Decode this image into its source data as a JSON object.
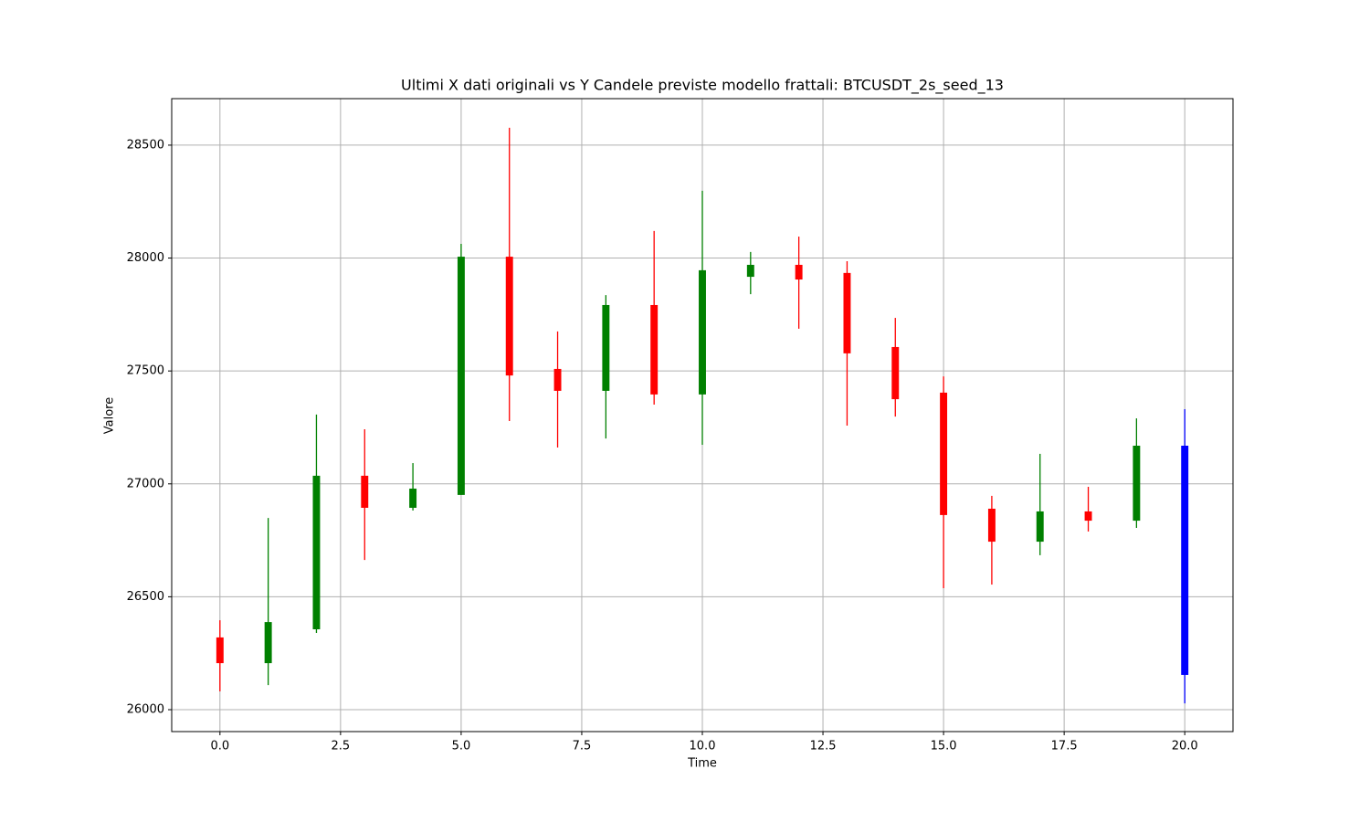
{
  "chart_data": {
    "type": "candlestick",
    "title": "Ultimi X dati originali vs Y Candele previste modello frattali: BTCUSDT_2s_seed_13",
    "xlabel": "Time",
    "ylabel": "Valore",
    "x": [
      0,
      1,
      2,
      3,
      4,
      5,
      6,
      7,
      8,
      9,
      10,
      11,
      12,
      13,
      14,
      15,
      16,
      17,
      18,
      19,
      20
    ],
    "open": [
      26320,
      26206,
      26356,
      27036,
      26894,
      26951,
      28006,
      27509,
      27412,
      27792,
      27396,
      27917,
      27970,
      27934,
      27606,
      27404,
      26890,
      26744,
      26878,
      26837,
      27169
    ],
    "high": [
      26396,
      26849,
      27307,
      27242,
      27092,
      28063,
      28577,
      27675,
      27836,
      28120,
      28298,
      28027,
      28095,
      27986,
      27735,
      27476,
      26947,
      27133,
      26987,
      27290,
      27331
    ],
    "low": [
      26081,
      26109,
      26340,
      26663,
      26882,
      26951,
      27278,
      27161,
      27201,
      27351,
      27173,
      27840,
      27687,
      27258,
      27298,
      26538,
      26554,
      26684,
      26789,
      26805,
      26028
    ],
    "close": [
      26206,
      26388,
      27036,
      26894,
      26979,
      28006,
      27480,
      27412,
      27792,
      27396,
      27946,
      27970,
      27905,
      27578,
      27375,
      26862,
      26744,
      26878,
      26837,
      27169,
      26154
    ],
    "colors": [
      "#ff0000",
      "#008000",
      "#008000",
      "#ff0000",
      "#008000",
      "#008000",
      "#ff0000",
      "#ff0000",
      "#008000",
      "#ff0000",
      "#008000",
      "#008000",
      "#ff0000",
      "#ff0000",
      "#ff0000",
      "#ff0000",
      "#ff0000",
      "#008000",
      "#ff0000",
      "#008000",
      "#0000ff"
    ],
    "xlim": [
      -1,
      21
    ],
    "ylim": [
      25903,
      28706
    ],
    "xticks": [
      {
        "value": 0,
        "label": "0.0"
      },
      {
        "value": 2.5,
        "label": "2.5"
      },
      {
        "value": 5,
        "label": "5.0"
      },
      {
        "value": 7.5,
        "label": "7.5"
      },
      {
        "value": 10,
        "label": "10.0"
      },
      {
        "value": 12.5,
        "label": "12.5"
      },
      {
        "value": 15,
        "label": "15.0"
      },
      {
        "value": 17.5,
        "label": "17.5"
      },
      {
        "value": 20,
        "label": "20.0"
      }
    ],
    "yticks": [
      26000,
      26500,
      27000,
      27500,
      28000,
      28500
    ],
    "grid": true
  }
}
